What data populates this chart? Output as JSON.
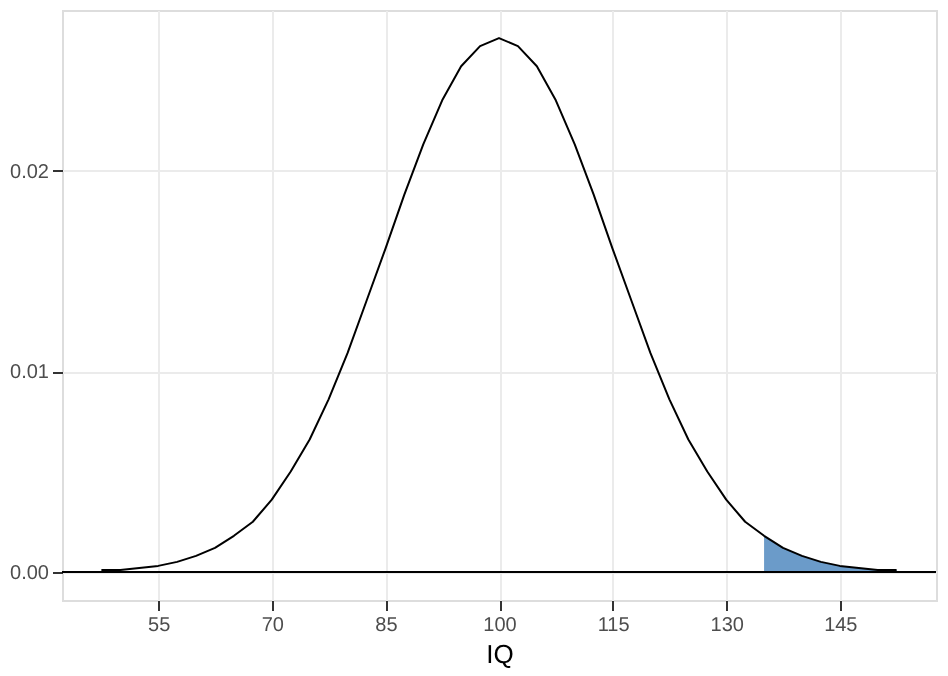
{
  "chart_data": {
    "type": "line",
    "xlabel": "IQ",
    "series": [
      {
        "color": "#000000",
        "x": [
          47.5,
          50,
          52.5,
          55,
          57.5,
          60,
          62.5,
          65,
          67.5,
          70,
          72.5,
          75,
          77.5,
          80,
          82.5,
          85,
          87.5,
          90,
          92.5,
          95,
          97.5,
          100,
          102.5,
          105,
          107.5,
          110,
          112.5,
          115,
          117.5,
          120,
          122.5,
          125,
          127.5,
          130,
          132.5,
          135,
          137.5,
          140,
          142.5,
          145,
          147.5,
          150,
          152.5
        ],
        "values": [
          0.0001,
          0.0001,
          0.0002,
          0.0003,
          0.0005,
          0.0008,
          0.0012,
          0.0018,
          0.0025,
          0.0036,
          0.005,
          0.0066,
          0.0086,
          0.0109,
          0.0135,
          0.0161,
          0.0188,
          0.0213,
          0.0235,
          0.0252,
          0.0262,
          0.0266,
          0.0262,
          0.0252,
          0.0235,
          0.0213,
          0.0188,
          0.0161,
          0.0135,
          0.0109,
          0.0086,
          0.0066,
          0.005,
          0.0036,
          0.0025,
          0.0018,
          0.0012,
          0.0008,
          0.0005,
          0.0003,
          0.0002,
          0.0001,
          0.0001
        ]
      },
      {
        "type": "area",
        "color": "#6b9bc9",
        "x": [
          135,
          137.5,
          140,
          142.5,
          145,
          147.5,
          150,
          152.5
        ],
        "values": [
          0.0018,
          0.0012,
          0.0008,
          0.0005,
          0.0003,
          0.0002,
          0.0001,
          0.0001
        ]
      }
    ],
    "xlim": [
      42.3,
      157.7
    ],
    "xticks": [
      55,
      70,
      85,
      100,
      115,
      130,
      145
    ],
    "ylim": [
      -0.0014,
      0.028
    ],
    "yticks": [
      {
        "value": 0,
        "label": "0.00"
      },
      {
        "value": 0.01,
        "label": "0.01"
      },
      {
        "value": 0.02,
        "label": "0.02"
      }
    ],
    "ref_lines": [
      {
        "axis": "y",
        "value": 0,
        "color": "#000000"
      }
    ],
    "grid": true
  }
}
